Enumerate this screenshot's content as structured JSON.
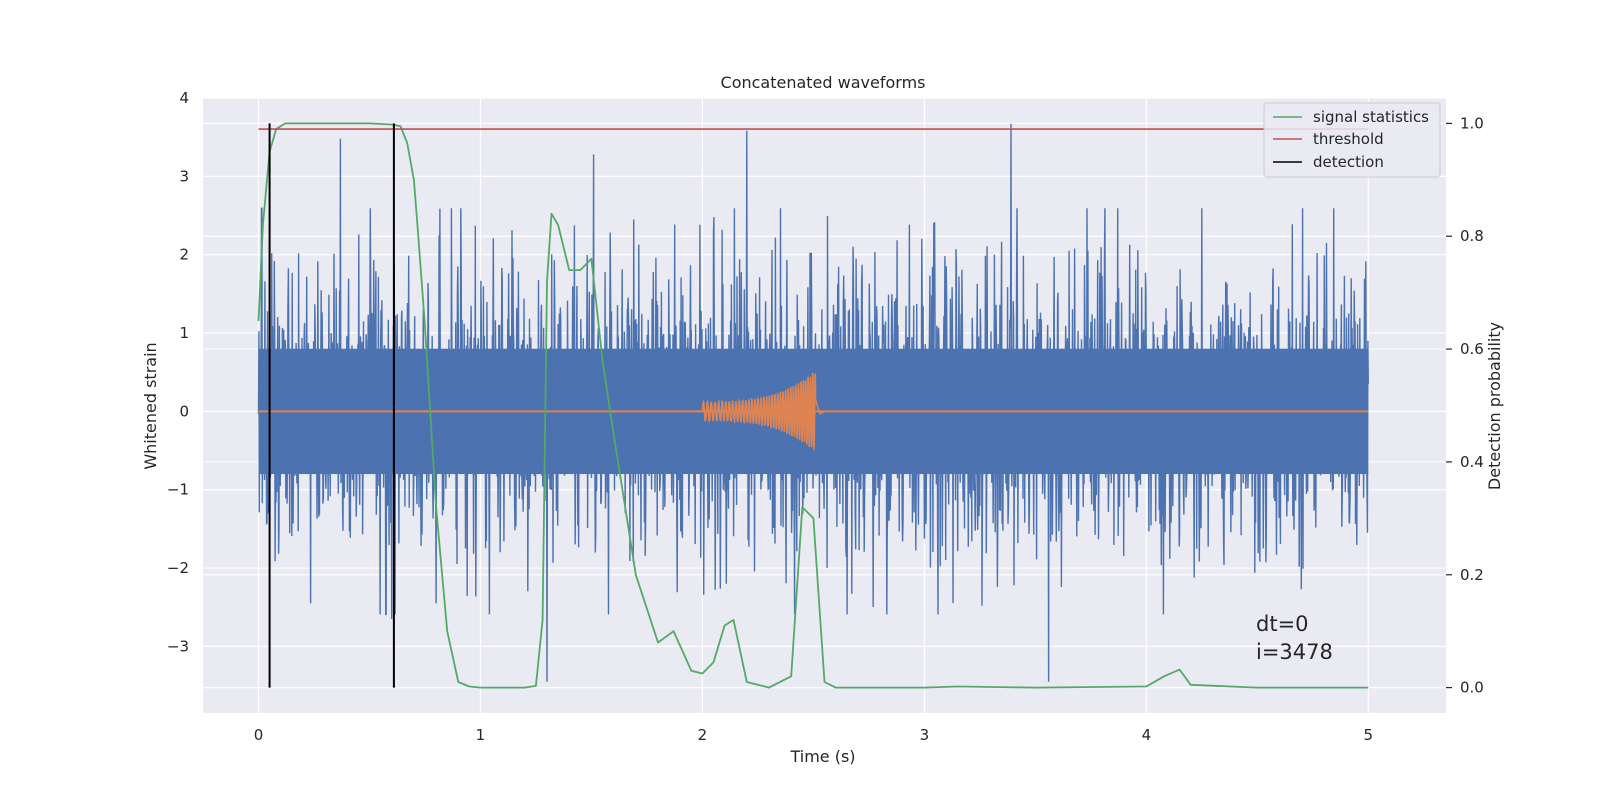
{
  "chart_data": {
    "type": "line",
    "title": "Concatenated waveforms",
    "xlabel": "Time (s)",
    "ylabel_left": "Whitened strain",
    "ylabel_right": "Detection probability",
    "xlim": [
      -0.25,
      5.35
    ],
    "ylim_left": [
      -3.85,
      4.0
    ],
    "ylim_right": [
      -0.045,
      1.045
    ],
    "x_ticks": [
      0,
      1,
      2,
      3,
      4,
      5
    ],
    "x_tick_labels": [
      "0",
      "1",
      "2",
      "3",
      "4",
      "5"
    ],
    "y_left_ticks": [
      4,
      3,
      2,
      1,
      0,
      -1,
      -2,
      -3
    ],
    "y_left_tick_labels": [
      "4",
      "3",
      "2",
      "1",
      "0",
      "−1",
      "−2",
      "−3"
    ],
    "y_right_ticks": [
      1.0,
      0.8,
      0.6,
      0.4,
      0.2,
      0.0
    ],
    "y_right_tick_labels": [
      "1.0",
      "0.8",
      "0.6",
      "0.4",
      "0.2",
      "0.0"
    ],
    "grid": true,
    "legend_position": "top-right",
    "series": [
      {
        "name": "",
        "axis": "left",
        "color": "#4c72b0",
        "kind": "noise",
        "x_range": [
          0,
          5
        ],
        "core_amplitude": 0.8,
        "spike_amplitude": 3.6,
        "spike_peaks": [
          {
            "x": 0.37,
            "y": 3.48
          },
          {
            "x": 1.51,
            "y": 3.28
          },
          {
            "x": 2.2,
            "y": 3.58
          },
          {
            "x": 3.39,
            "y": 3.67
          },
          {
            "x": 1.3,
            "y": -3.45
          },
          {
            "x": 3.56,
            "y": -3.45
          },
          {
            "x": 0.6,
            "y": -2.65
          }
        ]
      },
      {
        "name": "",
        "axis": "left",
        "color": "#dd8452",
        "kind": "chirp",
        "x": [
          0,
          2.0,
          2.51,
          5.0
        ],
        "start_amplitude": 0.12,
        "peak_amplitude": 0.52
      },
      {
        "name": "signal statistics",
        "axis": "right",
        "color": "#55a868",
        "x": [
          0,
          0.02,
          0.05,
          0.08,
          0.12,
          0.2,
          0.3,
          0.4,
          0.5,
          0.6,
          0.64,
          0.67,
          0.7,
          0.72,
          0.75,
          0.8,
          0.85,
          0.9,
          0.95,
          1.0,
          1.1,
          1.2,
          1.25,
          1.28,
          1.3,
          1.32,
          1.35,
          1.4,
          1.45,
          1.5,
          1.55,
          1.6,
          1.7,
          1.8,
          1.87,
          1.95,
          2.0,
          2.05,
          2.1,
          2.14,
          2.2,
          2.3,
          2.4,
          2.45,
          2.5,
          2.55,
          2.6,
          3.0,
          3.15,
          3.5,
          4.0,
          4.08,
          4.15,
          4.2,
          4.5,
          5.0
        ],
        "y": [
          0.65,
          0.82,
          0.95,
          0.99,
          1.0,
          1.0,
          1.0,
          1.0,
          1.0,
          0.998,
          0.995,
          0.965,
          0.9,
          0.8,
          0.64,
          0.32,
          0.1,
          0.01,
          0.002,
          0.0,
          0.0,
          0.0,
          0.003,
          0.12,
          0.72,
          0.84,
          0.82,
          0.74,
          0.74,
          0.76,
          0.58,
          0.45,
          0.2,
          0.08,
          0.1,
          0.03,
          0.025,
          0.045,
          0.11,
          0.12,
          0.01,
          0.0,
          0.02,
          0.32,
          0.3,
          0.01,
          0.0,
          0.0,
          0.002,
          0.0,
          0.002,
          0.02,
          0.032,
          0.005,
          0.0,
          0.0
        ]
      },
      {
        "name": "threshold",
        "axis": "right",
        "color": "#c44e52",
        "x": [
          0,
          5
        ],
        "y": [
          0.99,
          0.99
        ]
      },
      {
        "name": "detection",
        "axis": "right",
        "color": "#000000",
        "kind": "vlines",
        "x": [
          0.05,
          0.61
        ],
        "y_range": [
          0.0,
          1.0
        ]
      }
    ],
    "annotations": [
      {
        "text": "dt=0",
        "x": 4.5,
        "y": -2.7
      },
      {
        "text": "i=3478",
        "x": 4.5,
        "y": -3.1
      }
    ]
  }
}
